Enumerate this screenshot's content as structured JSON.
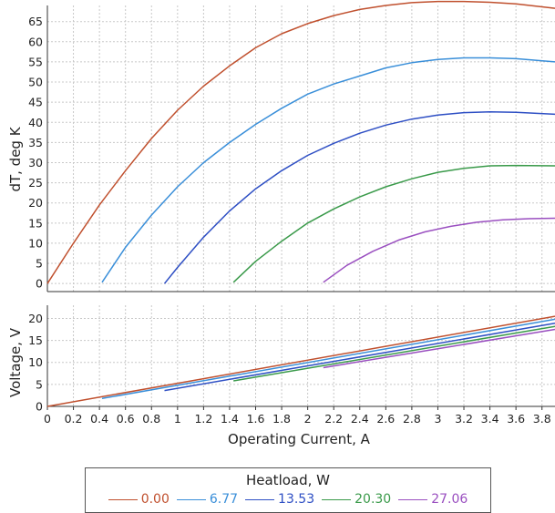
{
  "chart_data": [
    {
      "type": "line",
      "ylabel": "dT, deg K",
      "ylim": [
        -2,
        69
      ],
      "yticks": [
        0,
        5,
        10,
        15,
        20,
        25,
        30,
        35,
        40,
        45,
        50,
        55,
        60,
        65
      ],
      "xlim": [
        0,
        3.9
      ],
      "grid": true,
      "series": [
        {
          "name": "0.00",
          "color": "#c0502e",
          "x": [
            0,
            0.2,
            0.4,
            0.6,
            0.8,
            1.0,
            1.2,
            1.4,
            1.6,
            1.8,
            2.0,
            2.2,
            2.4,
            2.6,
            2.8,
            3.0,
            3.2,
            3.4,
            3.6,
            3.9
          ],
          "y": [
            0,
            10,
            19.5,
            28,
            36,
            43,
            49,
            54,
            58.5,
            62,
            64.5,
            66.5,
            68,
            69,
            69.7,
            70,
            70,
            69.8,
            69.4,
            68.3
          ]
        },
        {
          "name": "6.77",
          "color": "#3a8fd9",
          "x": [
            0.42,
            0.6,
            0.8,
            1.0,
            1.2,
            1.4,
            1.6,
            1.8,
            2.0,
            2.2,
            2.4,
            2.6,
            2.8,
            3.0,
            3.2,
            3.4,
            3.6,
            3.9
          ],
          "y": [
            0.3,
            9,
            17,
            24,
            30,
            35,
            39.5,
            43.5,
            47,
            49.5,
            51.5,
            53.5,
            54.8,
            55.6,
            56,
            56,
            55.8,
            55
          ]
        },
        {
          "name": "13.53",
          "color": "#2e4fc4",
          "x": [
            0.9,
            1.0,
            1.2,
            1.4,
            1.6,
            1.8,
            2.0,
            2.2,
            2.4,
            2.6,
            2.8,
            3.0,
            3.2,
            3.4,
            3.6,
            3.9
          ],
          "y": [
            0,
            4,
            11.5,
            18,
            23.5,
            28,
            31.8,
            34.8,
            37.3,
            39.3,
            40.8,
            41.8,
            42.4,
            42.6,
            42.5,
            42
          ]
        },
        {
          "name": "20.30",
          "color": "#3a9a4a",
          "x": [
            1.43,
            1.6,
            1.8,
            2.0,
            2.2,
            2.4,
            2.6,
            2.8,
            3.0,
            3.2,
            3.4,
            3.6,
            3.9
          ],
          "y": [
            0.3,
            5.5,
            10.5,
            15,
            18.5,
            21.5,
            24,
            26,
            27.6,
            28.6,
            29.2,
            29.3,
            29.2
          ]
        },
        {
          "name": "27.06",
          "color": "#9a4fc0",
          "x": [
            2.12,
            2.3,
            2.5,
            2.7,
            2.9,
            3.1,
            3.3,
            3.5,
            3.7,
            3.9
          ],
          "y": [
            0.3,
            4.5,
            8,
            10.8,
            12.8,
            14.2,
            15.2,
            15.8,
            16.1,
            16.2
          ]
        }
      ]
    },
    {
      "type": "line",
      "xlabel": "Operating Current, A",
      "ylabel": "Voltage, V",
      "ylim": [
        0,
        23
      ],
      "yticks": [
        0,
        5,
        10,
        15,
        20
      ],
      "xlim": [
        0,
        3.9
      ],
      "xticks": [
        0,
        0.2,
        0.4,
        0.6,
        0.8,
        1,
        1.2,
        1.4,
        1.6,
        1.8,
        2,
        2.2,
        2.4,
        2.6,
        2.8,
        3,
        3.2,
        3.4,
        3.6,
        3.8
      ],
      "xtick_labels": [
        "0",
        "0.2",
        "0.4",
        "0.6",
        "0.8",
        "1",
        "1.2",
        "1.4",
        "1.6",
        "1.8",
        "2",
        "2.2",
        "2.4",
        "2.6",
        "2.8",
        "3",
        "3.2",
        "3.4",
        "3.6",
        "3.8"
      ],
      "grid": true,
      "series": [
        {
          "name": "0.00",
          "color": "#c0502e",
          "x": [
            0,
            3.9
          ],
          "y": [
            0,
            20.5
          ]
        },
        {
          "name": "6.77",
          "color": "#3a8fd9",
          "x": [
            0.42,
            3.9
          ],
          "y": [
            1.8,
            19.8
          ]
        },
        {
          "name": "13.53",
          "color": "#2e4fc4",
          "x": [
            0.9,
            3.9
          ],
          "y": [
            3.6,
            18.9
          ]
        },
        {
          "name": "20.30",
          "color": "#3a9a4a",
          "x": [
            1.43,
            3.9
          ],
          "y": [
            5.8,
            18.2
          ]
        },
        {
          "name": "27.06",
          "color": "#9a4fc0",
          "x": [
            2.12,
            3.9
          ],
          "y": [
            8.8,
            17.5
          ]
        }
      ]
    }
  ],
  "legend": {
    "title": "Heatload, W",
    "items": [
      {
        "label": "0.00",
        "color": "#c0502e"
      },
      {
        "label": "6.77",
        "color": "#3a8fd9"
      },
      {
        "label": "13.53",
        "color": "#2e4fc4"
      },
      {
        "label": "20.30",
        "color": "#3a9a4a"
      },
      {
        "label": "27.06",
        "color": "#9a4fc0"
      }
    ]
  }
}
